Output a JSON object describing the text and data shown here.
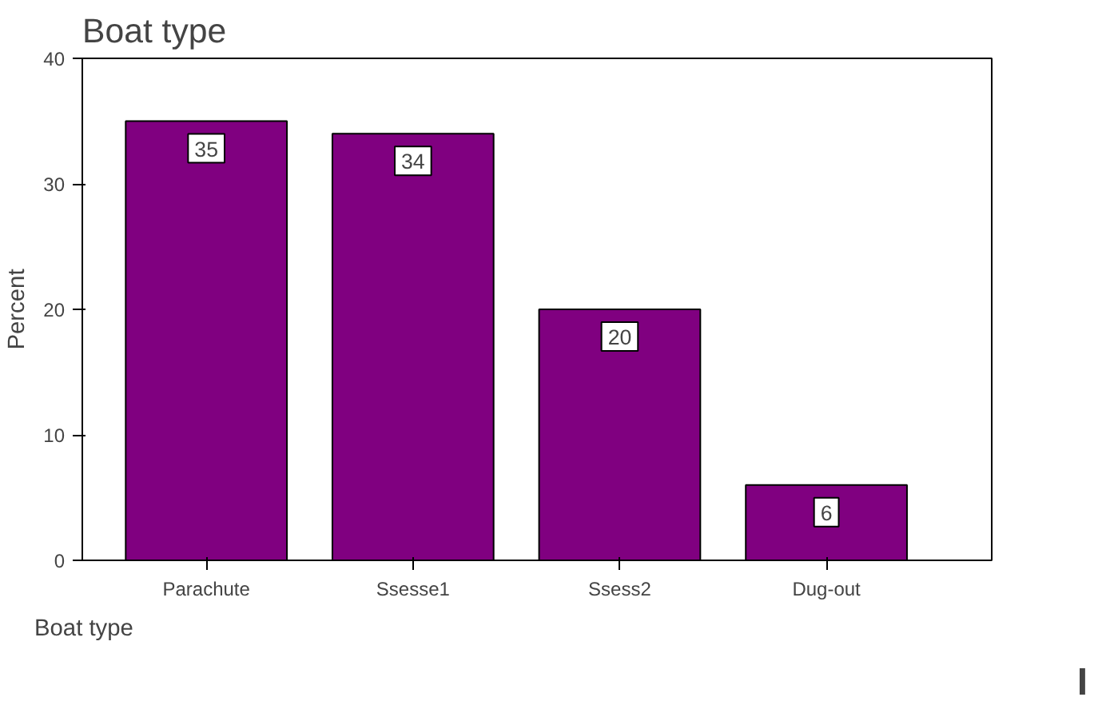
{
  "chart_data": {
    "type": "bar",
    "title": "Boat type",
    "xlabel": "Boat type",
    "ylabel": "Percent",
    "categories": [
      "Parachute",
      "Ssesse1",
      "Ssess2",
      "Dug-out"
    ],
    "values": [
      35,
      34,
      20,
      6
    ],
    "color": "#800080",
    "ylim": [
      0,
      40
    ],
    "yticks": [
      0,
      10,
      20,
      30,
      40
    ],
    "grid": false,
    "data_labels": true,
    "annotations": [
      "I"
    ]
  }
}
